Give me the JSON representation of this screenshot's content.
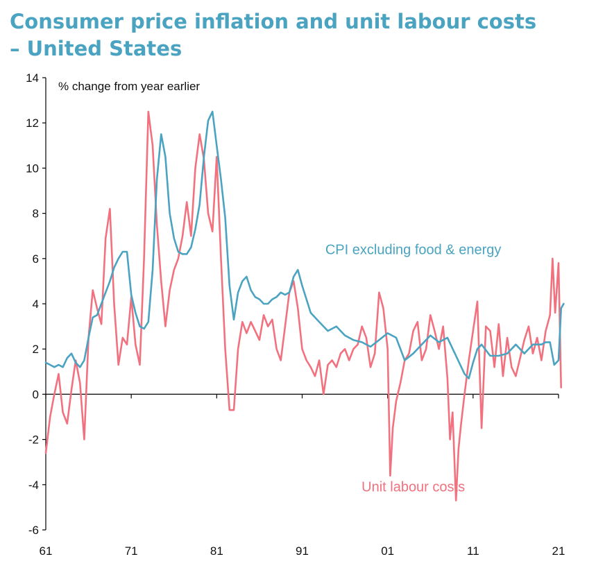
{
  "chart_data": {
    "type": "line",
    "title_line1": "Consumer price inflation and unit labour costs",
    "title_line2": "– United States",
    "ylabel": "% change from year earlier",
    "ylim": [
      -6,
      14
    ],
    "y_ticks": [
      "14",
      "12",
      "10",
      "8",
      "6",
      "4",
      "2",
      "0",
      "-2",
      "-4",
      "-6"
    ],
    "y_tick_values": [
      14,
      12,
      10,
      8,
      6,
      4,
      2,
      0,
      -2,
      -4,
      -6
    ],
    "xlim": [
      1961,
      2021
    ],
    "x_ticks": [
      "61",
      "71",
      "81",
      "91",
      "01",
      "11",
      "21"
    ],
    "x_tick_values": [
      1961,
      1971,
      1981,
      1991,
      2001,
      2011,
      2021
    ],
    "grid": false,
    "colors": {
      "cpi": "#4aa3c0",
      "ulc": "#f2717f",
      "title": "#4aa3c0"
    },
    "series": [
      {
        "name": "CPI excluding food & energy",
        "color": "#4aa3c0",
        "x": [
          1961.0,
          1961.5,
          1962.0,
          1962.5,
          1963.0,
          1963.5,
          1964.0,
          1964.5,
          1965.0,
          1965.5,
          1966.0,
          1966.5,
          1967.0,
          1967.5,
          1968.0,
          1968.5,
          1969.0,
          1969.5,
          1970.0,
          1970.5,
          1971.0,
          1971.5,
          1972.0,
          1972.5,
          1973.0,
          1973.5,
          1974.0,
          1974.5,
          1975.0,
          1975.5,
          1976.0,
          1976.5,
          1977.0,
          1977.5,
          1978.0,
          1978.5,
          1979.0,
          1979.5,
          1980.0,
          1980.5,
          1981.0,
          1981.5,
          1982.0,
          1982.5,
          1983.0,
          1983.5,
          1984.0,
          1984.5,
          1985.0,
          1985.5,
          1986.0,
          1986.5,
          1987.0,
          1987.5,
          1988.0,
          1988.5,
          1989.0,
          1989.5,
          1990.0,
          1990.5,
          1991.0,
          1991.5,
          1992.0,
          1993.0,
          1994.0,
          1995.0,
          1996.0,
          1997.0,
          1998.0,
          1999.0,
          2000.0,
          2001.0,
          2002.0,
          2003.0,
          2004.0,
          2005.0,
          2006.0,
          2007.0,
          2008.0,
          2009.0,
          2010.0,
          2010.5,
          2011.0,
          2011.5,
          2012.0,
          2013.0,
          2014.0,
          2015.0,
          2016.0,
          2017.0,
          2018.0,
          2018.5,
          2019.0,
          2019.5,
          2020.0,
          2020.5,
          2021.0,
          2021.3,
          2021.6
        ],
        "values": [
          1.4,
          1.3,
          1.2,
          1.3,
          1.2,
          1.6,
          1.8,
          1.4,
          1.2,
          1.5,
          2.5,
          3.4,
          3.5,
          4.0,
          4.5,
          5.0,
          5.6,
          6.0,
          6.3,
          6.3,
          4.4,
          3.6,
          3.0,
          2.9,
          3.2,
          5.5,
          9.5,
          11.5,
          10.5,
          8.0,
          6.9,
          6.3,
          6.2,
          6.2,
          6.5,
          7.3,
          8.4,
          10.5,
          12.1,
          12.5,
          11.0,
          9.5,
          7.8,
          4.8,
          3.3,
          4.5,
          5.0,
          5.2,
          4.6,
          4.3,
          4.2,
          4.0,
          4.0,
          4.2,
          4.3,
          4.5,
          4.4,
          4.5,
          5.2,
          5.5,
          4.8,
          4.2,
          3.6,
          3.2,
          2.8,
          3.0,
          2.6,
          2.4,
          2.3,
          2.1,
          2.4,
          2.7,
          2.5,
          1.5,
          1.8,
          2.2,
          2.6,
          2.3,
          2.5,
          1.7,
          0.9,
          0.7,
          1.4,
          2.0,
          2.2,
          1.7,
          1.7,
          1.8,
          2.2,
          1.8,
          2.2,
          2.2,
          2.2,
          2.3,
          2.3,
          1.3,
          1.5,
          3.8,
          4.0
        ]
      },
      {
        "name": "Unit labour costs",
        "color": "#f2717f",
        "x": [
          1961.0,
          1961.5,
          1962.0,
          1962.5,
          1963.0,
          1963.5,
          1964.0,
          1964.5,
          1965.0,
          1965.5,
          1966.0,
          1966.5,
          1967.0,
          1967.5,
          1968.0,
          1968.5,
          1969.0,
          1969.5,
          1970.0,
          1970.5,
          1971.0,
          1971.5,
          1972.0,
          1972.5,
          1973.0,
          1973.5,
          1974.0,
          1974.5,
          1975.0,
          1975.5,
          1976.0,
          1976.5,
          1977.0,
          1977.5,
          1978.0,
          1978.5,
          1979.0,
          1979.5,
          1980.0,
          1980.5,
          1981.0,
          1981.5,
          1982.0,
          1982.5,
          1983.0,
          1983.5,
          1984.0,
          1984.5,
          1985.0,
          1985.5,
          1986.0,
          1986.5,
          1987.0,
          1987.5,
          1988.0,
          1988.5,
          1989.0,
          1989.5,
          1990.0,
          1990.5,
          1991.0,
          1991.5,
          1992.0,
          1992.5,
          1993.0,
          1993.5,
          1994.0,
          1994.5,
          1995.0,
          1995.5,
          1996.0,
          1996.5,
          1997.0,
          1997.5,
          1998.0,
          1998.5,
          1999.0,
          1999.5,
          2000.0,
          2000.5,
          2001.0,
          2001.3,
          2001.6,
          2002.0,
          2002.5,
          2003.0,
          2003.5,
          2004.0,
          2004.5,
          2005.0,
          2005.5,
          2006.0,
          2006.5,
          2007.0,
          2007.5,
          2008.0,
          2008.3,
          2008.6,
          2009.0,
          2009.3,
          2009.6,
          2010.0,
          2010.5,
          2011.0,
          2011.5,
          2012.0,
          2012.5,
          2013.0,
          2013.5,
          2014.0,
          2014.5,
          2015.0,
          2015.5,
          2016.0,
          2016.5,
          2017.0,
          2017.5,
          2018.0,
          2018.5,
          2019.0,
          2019.5,
          2020.0,
          2020.3,
          2020.6,
          2021.0,
          2021.3
        ],
        "values": [
          -2.6,
          -1.0,
          0.0,
          0.9,
          -0.8,
          -1.3,
          0.2,
          1.5,
          0.5,
          -2.0,
          2.5,
          4.6,
          3.8,
          3.1,
          6.9,
          8.2,
          4.0,
          1.3,
          2.5,
          2.2,
          4.3,
          2.2,
          1.3,
          6.0,
          12.5,
          11.0,
          7.5,
          5.0,
          3.0,
          4.6,
          5.5,
          6.0,
          7.0,
          8.5,
          7.0,
          10.0,
          11.5,
          10.4,
          8.0,
          7.2,
          10.5,
          6.0,
          2.0,
          -0.7,
          -0.7,
          2.0,
          3.2,
          2.7,
          3.2,
          2.8,
          2.4,
          3.5,
          3.0,
          3.3,
          2.0,
          1.5,
          3.0,
          4.5,
          5.0,
          3.8,
          2.0,
          1.5,
          1.2,
          0.8,
          1.5,
          0.0,
          1.3,
          1.5,
          1.2,
          1.8,
          2.0,
          1.5,
          2.0,
          2.2,
          3.0,
          2.5,
          1.2,
          1.8,
          4.5,
          3.8,
          2.0,
          -3.6,
          -1.5,
          -0.3,
          0.5,
          1.5,
          1.8,
          2.8,
          3.2,
          1.5,
          2.0,
          3.5,
          2.8,
          2.0,
          3.0,
          0.7,
          -2.0,
          -0.8,
          -4.7,
          -2.4,
          -1.3,
          0.0,
          1.5,
          2.8,
          4.1,
          -1.5,
          3.0,
          2.8,
          1.2,
          3.1,
          0.8,
          2.5,
          1.2,
          0.8,
          1.6,
          2.4,
          3.0,
          1.8,
          2.5,
          1.5,
          2.8,
          3.5,
          6.0,
          3.6,
          5.8,
          0.3
        ]
      }
    ],
    "annotations": [
      {
        "text": "CPI excluding food & energy",
        "x": 2004,
        "y": 6.2,
        "series": "CPI excluding food & energy"
      },
      {
        "text": "Unit labour costs",
        "x": 2004,
        "y": -4.3,
        "series": "Unit labour costs"
      }
    ]
  }
}
